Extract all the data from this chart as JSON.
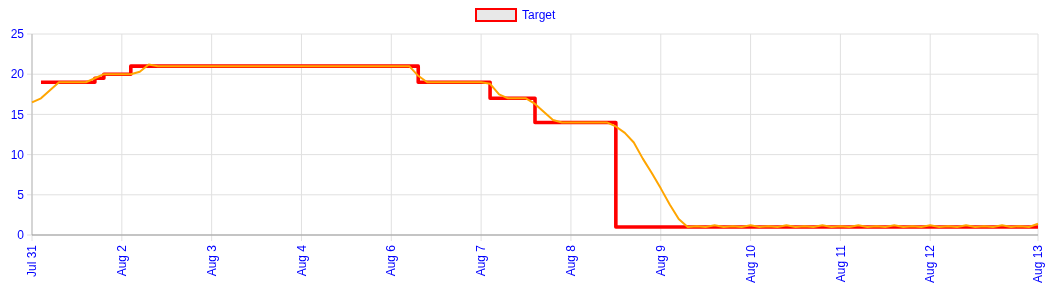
{
  "chart_data": {
    "type": "line",
    "legend": "top",
    "grid": true,
    "marker": "none",
    "categories": [
      "Jul 31",
      null,
      null,
      null,
      null,
      null,
      null,
      null,
      null,
      null,
      "Aug 2",
      null,
      null,
      null,
      null,
      null,
      null,
      null,
      null,
      null,
      "Aug 3",
      null,
      null,
      null,
      null,
      null,
      null,
      null,
      null,
      null,
      "Aug 4",
      null,
      null,
      null,
      null,
      null,
      null,
      null,
      null,
      null,
      "Aug 6",
      null,
      null,
      null,
      null,
      null,
      null,
      null,
      null,
      null,
      "Aug 7",
      null,
      null,
      null,
      null,
      null,
      null,
      null,
      null,
      null,
      "Aug 8",
      null,
      null,
      null,
      null,
      null,
      null,
      null,
      null,
      null,
      "Aug 9",
      null,
      null,
      null,
      null,
      null,
      null,
      null,
      null,
      null,
      "Aug 10",
      null,
      null,
      null,
      null,
      null,
      null,
      null,
      null,
      null,
      "Aug 11",
      null,
      null,
      null,
      null,
      null,
      null,
      null,
      null,
      null,
      "Aug 12",
      null,
      null,
      null,
      null,
      null,
      null,
      null,
      null,
      null,
      null,
      null,
      "Aug 13"
    ],
    "ylim": [
      0,
      25
    ],
    "yticks": [
      0,
      5,
      10,
      15,
      20,
      25
    ],
    "series": [
      {
        "name": "Target",
        "type": "step",
        "color": "#ff0000",
        "values": [
          null,
          19,
          19,
          19,
          19,
          19,
          19,
          19.5,
          20,
          20,
          20,
          21,
          21,
          21,
          21,
          21,
          21,
          21,
          21,
          21,
          21,
          21,
          21,
          21,
          21,
          21,
          21,
          21,
          21,
          21,
          21,
          21,
          21,
          21,
          21,
          21,
          21,
          21,
          21,
          21,
          21,
          21,
          21,
          19,
          19,
          19,
          19,
          19,
          19,
          19,
          19,
          17,
          17,
          17,
          17,
          17,
          14,
          14,
          14,
          14,
          14,
          14,
          14,
          14,
          14,
          1,
          1,
          1,
          1,
          1,
          1,
          1,
          1,
          1,
          1,
          1,
          1,
          1,
          1,
          1,
          1,
          1,
          1,
          1,
          1,
          1,
          1,
          1,
          1,
          1,
          1,
          1,
          1,
          1,
          1,
          1,
          1,
          1,
          1,
          1,
          1,
          1,
          1,
          1,
          1,
          1,
          1,
          1,
          1,
          1,
          1,
          1,
          1
        ]
      },
      {
        "color": "#ffa500",
        "values": [
          16.5,
          17,
          18,
          19,
          19,
          19,
          19,
          19.5,
          20,
          20,
          20,
          20,
          20.3,
          21.2,
          21,
          21,
          21,
          21,
          21,
          21,
          21,
          21,
          21,
          21,
          21,
          21,
          21,
          21,
          21,
          21,
          21,
          21,
          21,
          21,
          21,
          21,
          21,
          21,
          21,
          21,
          21,
          21,
          21,
          19.8,
          19,
          19,
          19,
          19,
          19,
          19,
          19,
          18.8,
          17.5,
          17,
          17,
          17,
          16.3,
          15.3,
          14.3,
          14,
          14,
          14,
          14,
          14,
          14,
          13.5,
          12.7,
          11.5,
          9.5,
          7.7,
          5.8,
          3.8,
          2,
          1,
          1.1,
          1,
          1.2,
          1,
          1.1,
          1,
          1.2,
          1,
          1.1,
          1,
          1.2,
          1,
          1.1,
          1,
          1.2,
          1,
          1.1,
          1,
          1.2,
          1,
          1.1,
          1,
          1.2,
          1,
          1.1,
          1,
          1.2,
          1,
          1.1,
          1,
          1.2,
          1,
          1.1,
          1,
          1.2,
          1,
          1.1,
          1,
          1.4
        ]
      }
    ]
  }
}
